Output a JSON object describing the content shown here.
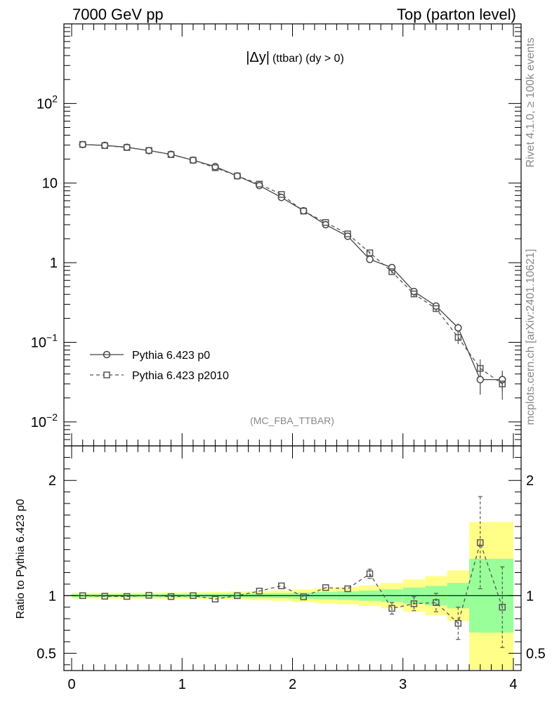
{
  "header": {
    "left": "7000 GeV pp",
    "right": "Top (parton level)"
  },
  "side_labels": {
    "rivet": "Rivet 4.1.0, ≥ 100k events",
    "mcplots": "mcplots.cern.ch [arXiv:2401.10621]"
  },
  "chart_data": [
    {
      "type": "line",
      "panel": "main",
      "title": "|Δy| (ttbar) (dy > 0)",
      "title_main": "|Δy|",
      "title_sub": "(ttbar) (dy > 0)",
      "analysis_tag": "(MC_FBA_TTBAR)",
      "yscale": "log",
      "ylim": [
        0.005,
        1000
      ],
      "xlim": [
        -0.07,
        4.07
      ],
      "ytick_labels": [
        {
          "value": 0.01,
          "base": "10",
          "exp": "−2"
        },
        {
          "value": 0.1,
          "base": "10",
          "exp": "−1"
        },
        {
          "value": 1,
          "base": "1",
          "exp": ""
        },
        {
          "value": 10,
          "base": "10",
          "exp": ""
        },
        {
          "value": 100,
          "base": "10",
          "exp": "2"
        }
      ],
      "x": [
        0.1,
        0.3,
        0.5,
        0.7,
        0.9,
        1.1,
        1.3,
        1.5,
        1.7,
        1.9,
        2.1,
        2.3,
        2.5,
        2.7,
        2.9,
        3.1,
        3.3,
        3.5,
        3.7,
        3.9
      ],
      "series": [
        {
          "name": "Pythia 6.423 p0",
          "marker": "circle",
          "linestyle": "solid",
          "color": "#444444",
          "values": [
            30.5,
            29.8,
            28.2,
            25.6,
            23.0,
            19.4,
            16.1,
            12.3,
            9.3,
            6.6,
            4.5,
            3.0,
            2.15,
            1.1,
            0.87,
            0.435,
            0.285,
            0.152,
            0.034,
            0.034
          ],
          "errors": [
            0.3,
            0.3,
            0.3,
            0.3,
            0.3,
            0.3,
            0.2,
            0.2,
            0.15,
            0.12,
            0.1,
            0.08,
            0.06,
            0.05,
            0.04,
            0.03,
            0.025,
            0.02,
            0.012,
            0.01
          ]
        },
        {
          "name": "Pythia 6.423 p2010",
          "marker": "square",
          "linestyle": "dashed",
          "color": "#555555",
          "values": [
            30.6,
            29.6,
            28.0,
            25.7,
            22.8,
            19.4,
            15.6,
            12.3,
            9.7,
            7.2,
            4.45,
            3.2,
            2.3,
            1.33,
            0.77,
            0.405,
            0.265,
            0.115,
            0.047,
            0.03
          ],
          "errors": [
            0.3,
            0.3,
            0.3,
            0.3,
            0.3,
            0.3,
            0.2,
            0.2,
            0.15,
            0.12,
            0.1,
            0.08,
            0.06,
            0.05,
            0.04,
            0.03,
            0.025,
            0.02,
            0.014,
            0.011
          ]
        }
      ]
    },
    {
      "type": "line",
      "panel": "ratio",
      "ylabel": "Ratio to Pythia 6.423 p0",
      "ylim": [
        0.35,
        2.3
      ],
      "yticks": [
        0.5,
        1,
        2
      ],
      "ytick_labels": [
        "0.5",
        "1",
        "2"
      ],
      "xlim": [
        -0.07,
        4.07
      ],
      "xticks": [
        0,
        1,
        2,
        3,
        4
      ],
      "xtick_labels": [
        "0",
        "1",
        "2",
        "3",
        "4"
      ],
      "bin_edges": [
        0.0,
        0.2,
        0.4,
        0.6,
        0.8,
        1.0,
        1.2,
        1.4,
        1.6,
        1.8,
        2.0,
        2.2,
        2.4,
        2.6,
        2.8,
        3.0,
        3.2,
        3.4,
        3.6,
        3.8,
        4.0
      ],
      "band_green_halfwidth": [
        0.012,
        0.012,
        0.013,
        0.013,
        0.014,
        0.015,
        0.016,
        0.018,
        0.02,
        0.022,
        0.027,
        0.032,
        0.037,
        0.045,
        0.055,
        0.07,
        0.085,
        0.11,
        0.32,
        0.32
      ],
      "band_yellow_halfwidth": [
        0.025,
        0.025,
        0.026,
        0.027,
        0.028,
        0.03,
        0.032,
        0.036,
        0.04,
        0.045,
        0.055,
        0.065,
        0.075,
        0.09,
        0.11,
        0.14,
        0.17,
        0.22,
        0.64,
        0.64
      ],
      "x": [
        0.1,
        0.3,
        0.5,
        0.7,
        0.9,
        1.1,
        1.3,
        1.5,
        1.7,
        1.9,
        2.1,
        2.3,
        2.5,
        2.7,
        2.9,
        3.1,
        3.3,
        3.5,
        3.7,
        3.9
      ],
      "series": [
        {
          "name": "Pythia 6.423 p2010",
          "marker": "square",
          "linestyle": "dashed",
          "color": "#555555",
          "values": [
            1.0,
            0.995,
            0.993,
            1.003,
            0.992,
            1.0,
            0.97,
            1.0,
            1.04,
            1.085,
            0.99,
            1.07,
            1.06,
            1.19,
            0.89,
            0.93,
            0.94,
            0.76,
            1.46,
            0.9
          ],
          "errors": [
            0.008,
            0.008,
            0.008,
            0.008,
            0.008,
            0.009,
            0.01,
            0.012,
            0.014,
            0.017,
            0.02,
            0.025,
            0.03,
            0.04,
            0.05,
            0.06,
            0.08,
            0.14,
            0.4,
            0.35
          ]
        }
      ]
    }
  ]
}
